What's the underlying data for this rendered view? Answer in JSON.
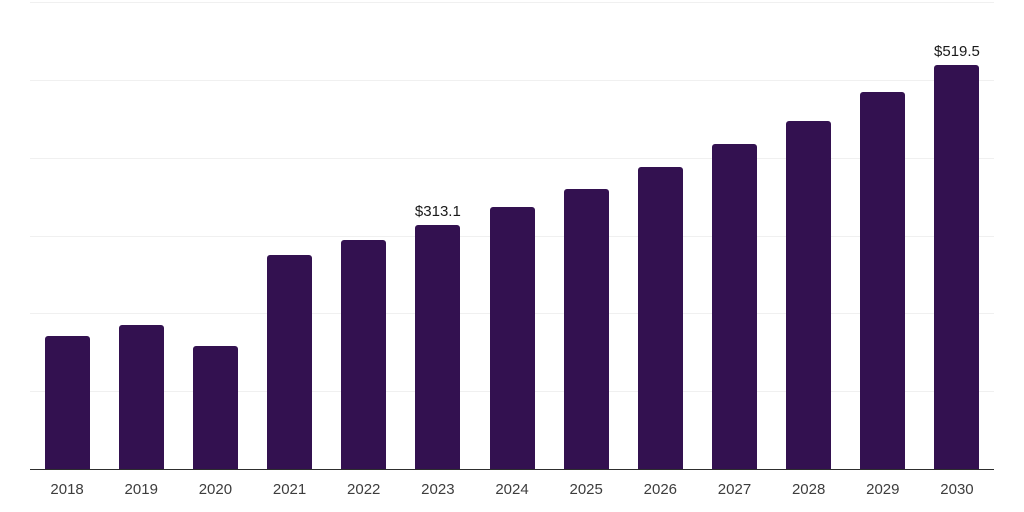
{
  "chart_data": {
    "type": "bar",
    "title": "",
    "xlabel": "",
    "ylabel": "",
    "categories": [
      "2018",
      "2019",
      "2020",
      "2021",
      "2022",
      "2023",
      "2024",
      "2025",
      "2026",
      "2027",
      "2028",
      "2029",
      "2030"
    ],
    "values": [
      171.4,
      185.4,
      157.5,
      274.5,
      293.8,
      313.1,
      336.5,
      359.4,
      387.7,
      417.4,
      447.0,
      484.3,
      519.5
    ],
    "data_labels": [
      "",
      "",
      "",
      "",
      "",
      "$313.1",
      "",
      "",
      "",
      "",
      "",
      "",
      "$519.5"
    ],
    "ylim": [
      0,
      600
    ],
    "gridline_values": [
      100,
      200,
      300,
      400,
      500,
      600
    ],
    "grid": true,
    "legend": false,
    "bar_color": "#331150",
    "grid_color": "#f0f0f0",
    "axis_color": "#2e2e2e",
    "tick_label_color": "#3d3d3d",
    "value_label_color": "#1a1a1a"
  }
}
